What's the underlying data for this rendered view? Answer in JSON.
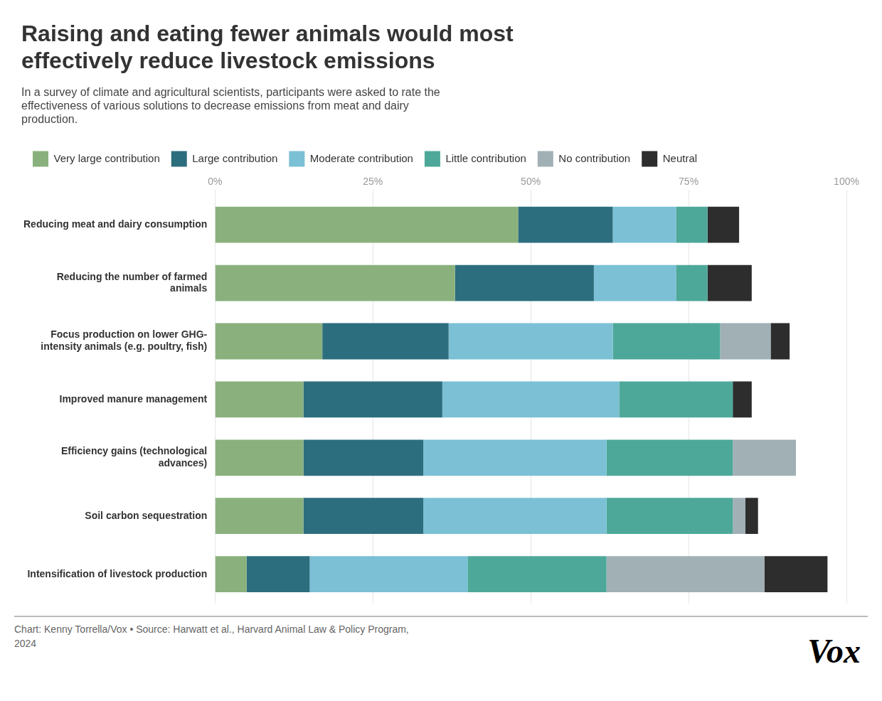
{
  "chart_data": {
    "type": "bar",
    "orientation": "horizontal",
    "stacked": true,
    "title": "Raising and eating fewer animals would most\neffectively reduce livestock emissions",
    "subtitle": "In a survey of climate and agricultural scientists, participants were asked to rate the\neffectiveness of various solutions to decrease emissions from meat and dairy\nproduction.",
    "annotations": [
      "Chart: Kenny Torrella/Vox • Source: Harwatt et al., Harvard Animal Law & Policy Program,\n2024",
      "Vox"
    ],
    "categories": [
      "Reducing meat and dairy consumption",
      "Reducing the number of farmed\nanimals",
      "Focus production on lower GHG-\nintensity animals (e.g. poultry, fish)",
      "Improved manure management",
      "Efficiency gains (technological\nadvances)",
      "Soil carbon sequestration",
      "Intensification of livestock production"
    ],
    "series": [
      {
        "name": "Very large contribution",
        "color": "#8ab17d",
        "values": [
          48,
          38,
          17,
          14,
          14,
          14,
          5
        ]
      },
      {
        "name": "Large contribution",
        "color": "#2d6e7e",
        "values": [
          15,
          22,
          20,
          22,
          19,
          19,
          10
        ]
      },
      {
        "name": "Moderate contribution",
        "color": "#7bc0d5",
        "values": [
          10,
          13,
          26,
          28,
          29,
          29,
          25
        ]
      },
      {
        "name": "Little contribution",
        "color": "#4da89a",
        "values": [
          5,
          5,
          17,
          18,
          20,
          20,
          22
        ]
      },
      {
        "name": "No contribution",
        "color": "#a0b0b5",
        "values": [
          0,
          0,
          8,
          0,
          10,
          2,
          25
        ]
      },
      {
        "name": "Neutral",
        "color": "#2d2d2d",
        "values": [
          5,
          7,
          3,
          3,
          0,
          2,
          10
        ]
      }
    ],
    "xlim": [
      0,
      100
    ],
    "xticks": [
      {
        "value": 0,
        "label": "0%"
      },
      {
        "value": 25,
        "label": "25%"
      },
      {
        "value": 50,
        "label": "50%"
      },
      {
        "value": 75,
        "label": "75%"
      },
      {
        "value": 100,
        "label": "100%"
      }
    ],
    "grid": true,
    "legend": "top"
  }
}
